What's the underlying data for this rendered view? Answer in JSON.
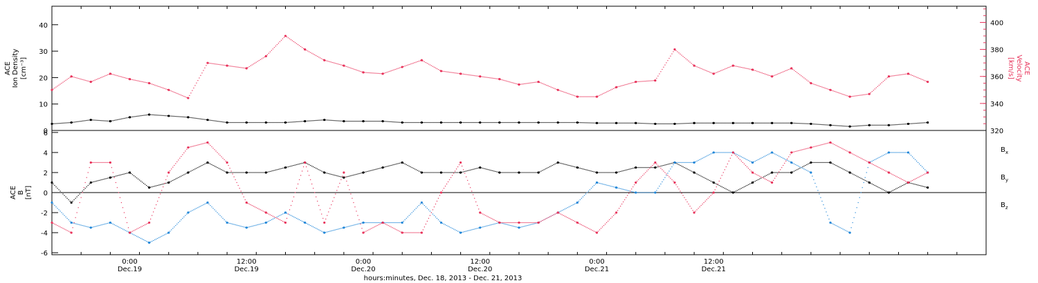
{
  "chart_data": [
    {
      "type": "scatter",
      "panel": "top",
      "ylabel_left": [
        "ACE",
        "Ion Density",
        "[cm⁻³]"
      ],
      "ylabel_right": [
        "ACE",
        "Velocity",
        "[km/s]"
      ],
      "ylim_left": [
        0,
        47
      ],
      "yticks_left": [
        "0",
        "10",
        "20",
        "30",
        "40"
      ],
      "ylim_right": [
        320,
        412
      ],
      "yticks_right": [
        "320",
        "340",
        "360",
        "380",
        "400"
      ],
      "grid": false,
      "series": [
        {
          "axis": "left",
          "color": "#000000",
          "x": [
            -8,
            -6,
            -4,
            -2,
            0,
            2,
            4,
            6,
            8,
            10,
            12,
            14,
            16,
            18,
            20,
            22,
            24,
            26,
            28,
            30,
            32,
            34,
            36,
            38,
            40,
            42,
            44,
            46,
            48,
            50,
            52,
            54,
            56,
            58,
            60,
            62,
            64,
            66,
            68,
            70,
            72,
            74,
            76,
            78,
            80,
            82
          ],
          "y": [
            2.5,
            3,
            4,
            3.5,
            5,
            6,
            5.5,
            5,
            4,
            3,
            3,
            3,
            3,
            3.5,
            4,
            3.5,
            3.5,
            3.5,
            3,
            3,
            3,
            3,
            3,
            3,
            3,
            3,
            3,
            3,
            2.8,
            2.8,
            2.8,
            2.5,
            2.5,
            2.8,
            2.8,
            2.8,
            2.8,
            2.8,
            2.8,
            2.5,
            2,
            1.5,
            2,
            2,
            2.5,
            3
          ]
        },
        {
          "axis": "right",
          "color": "#e8325a",
          "x": [
            -8,
            -6,
            -4,
            -2,
            0,
            2,
            4,
            6,
            8,
            10,
            12,
            14,
            16,
            18,
            20,
            22,
            24,
            26,
            28,
            30,
            32,
            34,
            36,
            38,
            40,
            42,
            44,
            46,
            48,
            50,
            52,
            54,
            56,
            58,
            60,
            62,
            64,
            66,
            68,
            70,
            72,
            74,
            76,
            78,
            80,
            82
          ],
          "y": [
            350,
            360,
            356,
            362,
            358,
            355,
            350,
            344,
            370,
            368,
            366,
            375,
            390,
            380,
            372,
            368,
            363,
            362,
            367,
            372,
            364,
            362,
            360,
            358,
            354,
            356,
            350,
            345,
            345,
            352,
            356,
            357,
            380,
            368,
            362,
            368,
            365,
            360,
            366,
            355,
            350,
            345,
            347,
            360,
            362,
            356
          ]
        }
      ]
    },
    {
      "type": "scatter",
      "panel": "bottom",
      "ylabel": [
        "ACE",
        "B",
        "[nT]"
      ],
      "ylim": [
        -6.2,
        6.2
      ],
      "yticks": [
        "-6",
        "-4",
        "-2",
        "0",
        "2",
        "4",
        "6"
      ],
      "xlim": [
        -8,
        88
      ],
      "xticks": [
        {
          "x": 0,
          "label": "0:00",
          "sub": "Dec.19"
        },
        {
          "x": 12,
          "label": "12:00",
          "sub": "Dec.19"
        },
        {
          "x": 24,
          "label": "0:00",
          "sub": "Dec.20"
        },
        {
          "x": 36,
          "label": "12:00",
          "sub": "Dec.20"
        },
        {
          "x": 48,
          "label": "0:00",
          "sub": "Dec.21"
        },
        {
          "x": 60,
          "label": "12:00",
          "sub": "Dec.21"
        }
      ],
      "xlabel": "hours:minutes, Dec. 18, 2013 - Dec. 21, 2013",
      "legend_position": "right",
      "series": [
        {
          "name": "B",
          "sub": "x",
          "color": "#000000",
          "x": [
            -8,
            -6,
            -4,
            -2,
            0,
            2,
            4,
            6,
            8,
            10,
            12,
            14,
            16,
            18,
            20,
            22,
            24,
            26,
            28,
            30,
            32,
            34,
            36,
            38,
            40,
            42,
            44,
            46,
            48,
            50,
            52,
            54,
            56,
            58,
            60,
            62,
            64,
            66,
            68,
            70,
            72,
            74,
            76,
            78,
            80,
            82
          ],
          "y": [
            1,
            -1,
            1,
            1.5,
            2,
            0.5,
            1,
            2,
            3,
            2,
            2,
            2,
            2.5,
            3,
            2,
            1.5,
            2,
            2.5,
            3,
            2,
            2,
            2,
            2.5,
            2,
            2,
            2,
            3,
            2.5,
            2,
            2,
            2.5,
            2.5,
            3,
            2,
            1,
            0,
            1,
            2,
            2,
            3,
            3,
            2,
            1,
            0,
            1,
            0.5
          ]
        },
        {
          "name": "B",
          "sub": "y",
          "color": "#1f86d8",
          "x": [
            -8,
            -6,
            -4,
            -2,
            0,
            2,
            4,
            6,
            8,
            10,
            12,
            14,
            16,
            18,
            20,
            22,
            24,
            26,
            28,
            30,
            32,
            34,
            36,
            38,
            40,
            42,
            44,
            46,
            48,
            50,
            52,
            54,
            56,
            58,
            60,
            62,
            64,
            66,
            68,
            70,
            72,
            74,
            76,
            78,
            80,
            82
          ],
          "y": [
            -1,
            -3,
            -3.5,
            -3,
            -4,
            -5,
            -4,
            -2,
            -1,
            -3,
            -3.5,
            -3,
            -2,
            -3,
            -4,
            -3.5,
            -3,
            -3,
            -3,
            -1,
            -3,
            -4,
            -3.5,
            -3,
            -3.5,
            -3,
            -2,
            -1,
            1,
            0.5,
            0,
            0,
            3,
            3,
            4,
            4,
            3,
            4,
            3,
            2,
            -3,
            -4,
            3,
            4,
            4,
            2
          ]
        },
        {
          "name": "B",
          "sub": "z",
          "color": "#e8325a",
          "x": [
            -8,
            -6,
            -4,
            -2,
            0,
            2,
            4,
            6,
            8,
            10,
            12,
            14,
            16,
            18,
            20,
            22,
            24,
            26,
            28,
            30,
            32,
            34,
            36,
            38,
            40,
            42,
            44,
            46,
            48,
            50,
            52,
            54,
            56,
            58,
            60,
            62,
            64,
            66,
            68,
            70,
            72,
            74,
            76,
            78,
            80,
            82
          ],
          "y": [
            -3,
            -4,
            3,
            3,
            -4,
            -3,
            2,
            4.5,
            5,
            3,
            -1,
            -2,
            -3,
            3,
            -3,
            2,
            -4,
            -3,
            -4,
            -4,
            0,
            3,
            -2,
            -3,
            -3,
            -3,
            -2,
            -3,
            -4,
            -2,
            1,
            3,
            1,
            -2,
            0,
            4,
            2,
            1,
            4,
            4.5,
            5,
            4,
            3,
            2,
            1,
            2
          ]
        }
      ]
    }
  ]
}
